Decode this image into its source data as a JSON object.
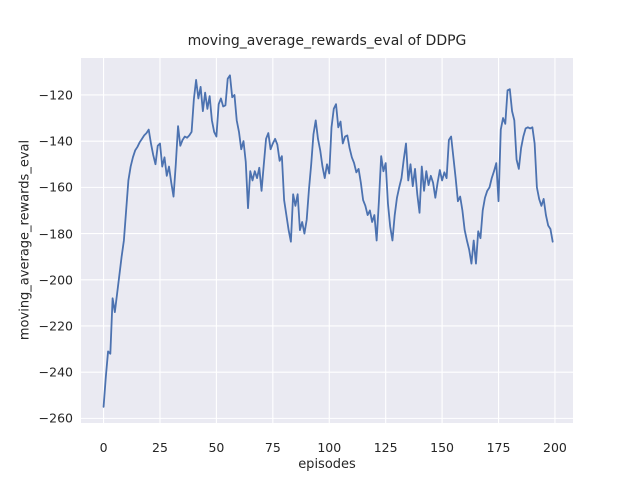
{
  "colors": {
    "line": "#4c72b0",
    "plot_background": "#eaeaf2",
    "gridline": "#ffffff",
    "text": "#262626",
    "figure_background": "#ffffff"
  },
  "chart_data": {
    "type": "line",
    "title": "moving_average_rewards_eval of DDPG",
    "xlabel": "episodes",
    "ylabel": "moving_average_rewards_eval",
    "x_ticks": [
      0,
      25,
      50,
      75,
      100,
      125,
      150,
      175,
      200
    ],
    "y_ticks": [
      -120,
      -140,
      -160,
      -180,
      -200,
      -220,
      -240,
      -260
    ],
    "xlim": [
      -10,
      208
    ],
    "ylim": [
      -262,
      -104
    ],
    "grid": true,
    "legend": false,
    "series": [
      {
        "name": "moving_average_rewards_eval",
        "x_start": 0,
        "x_step": 1,
        "values": [
          -255,
          -242,
          -231,
          -232,
          -208,
          -214,
          -206,
          -198,
          -190,
          -183,
          -170,
          -157,
          -151,
          -147,
          -144,
          -142.5,
          -140.5,
          -139,
          -137.5,
          -136.5,
          -135,
          -141,
          -146,
          -150,
          -142,
          -141,
          -151,
          -147,
          -155,
          -151,
          -158,
          -164,
          -150,
          -133.5,
          -142,
          -139.5,
          -138,
          -138.5,
          -137.5,
          -136,
          -122,
          -113.5,
          -121.5,
          -116.5,
          -127,
          -119,
          -126,
          -120.5,
          -131,
          -136,
          -138,
          -124,
          -121.5,
          -125,
          -124.5,
          -113,
          -111.5,
          -121,
          -120,
          -131,
          -136,
          -143.5,
          -140,
          -149,
          -169,
          -153,
          -157,
          -153,
          -156,
          -151.5,
          -161.5,
          -150,
          -139,
          -136.5,
          -143.5,
          -141,
          -139,
          -141.5,
          -148.5,
          -146.5,
          -165.5,
          -172,
          -178.5,
          -183.5,
          -163,
          -168,
          -163,
          -178.5,
          -175,
          -180,
          -174,
          -161,
          -150,
          -137,
          -131,
          -139,
          -144,
          -151,
          -156,
          -150,
          -154,
          -134,
          -126,
          -124,
          -134,
          -131.5,
          -141,
          -138,
          -137.5,
          -143,
          -147,
          -149.5,
          -153.5,
          -152,
          -158,
          -165.5,
          -168,
          -172,
          -170,
          -175,
          -172,
          -183,
          -166,
          -146.5,
          -153,
          -149.5,
          -167,
          -177,
          -183,
          -172,
          -164.5,
          -160,
          -156,
          -148,
          -141,
          -157,
          -150,
          -159.5,
          -152,
          -163,
          -171,
          -151,
          -161.5,
          -153,
          -159,
          -155,
          -158,
          -164.5,
          -158,
          -152.5,
          -157,
          -153.5,
          -156,
          -139.5,
          -138,
          -147,
          -156,
          -166,
          -164,
          -170,
          -178.5,
          -183,
          -187,
          -193,
          -183,
          -193,
          -179,
          -182,
          -170,
          -164.5,
          -161.5,
          -160,
          -156,
          -153,
          -149.5,
          -166,
          -135,
          -130,
          -132.5,
          -118,
          -117.5,
          -127,
          -131,
          -148,
          -152,
          -143,
          -138,
          -134.5,
          -134,
          -134.5,
          -134,
          -141,
          -160,
          -165,
          -168,
          -165,
          -172,
          -176.5,
          -178,
          -183.5
        ]
      }
    ]
  }
}
